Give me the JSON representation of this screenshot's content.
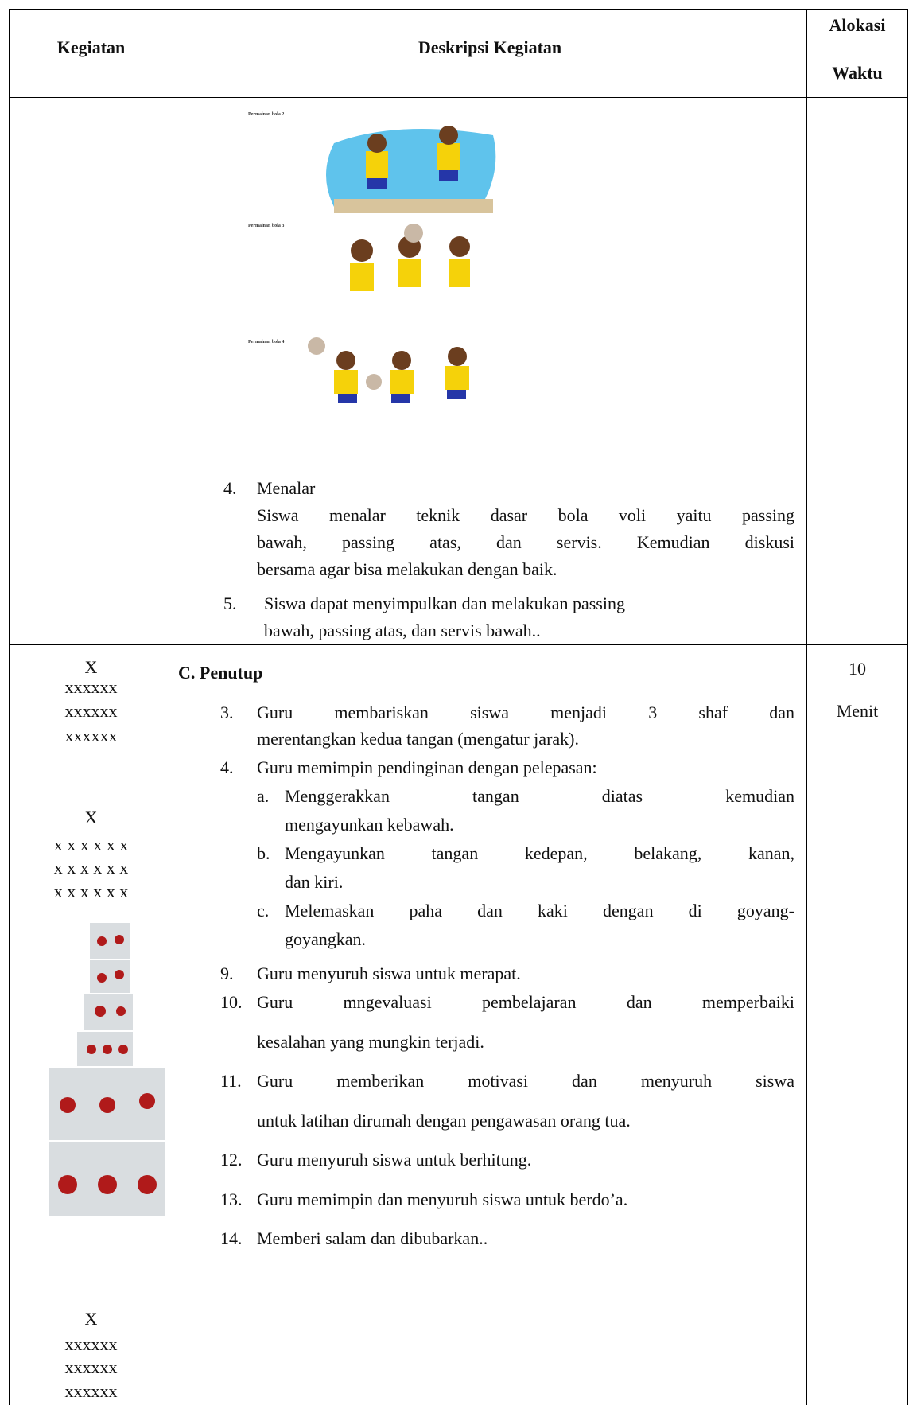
{
  "header": {
    "kegiatan": "Kegiatan",
    "deskripsi": "Deskripsi Kegiatan",
    "alokasi": [
      "Alokasi",
      "Waktu"
    ]
  },
  "rows": [
    {
      "captions": [
        "Permainan bola 2",
        "Permainan bola 3",
        "Permainan bola 4"
      ],
      "items": [
        {
          "number": "4.",
          "title": "Menalar",
          "lines": [
            "Siswa menalar teknik dasar bola voli yaitu passing",
            "bawah, passing atas, dan servis. Kemudian diskusi",
            "bersama agar bisa melakukan dengan baik."
          ]
        },
        {
          "number": "5.",
          "lines": [
            "Siswa dapat menyimpulkan dan melakukan passing",
            "bawah, passing atas, dan servis bawah.."
          ]
        }
      ]
    },
    {
      "kegiatan": [
        "X",
        "xxxxxx",
        "xxxxxx",
        "xxxxxx",
        "X",
        "x x x x x x",
        "x x x x x x",
        "x x x x x x",
        "X",
        "xxxxxx",
        "xxxxxx",
        "xxxxxx"
      ],
      "section": "C. Penutup",
      "items": [
        {
          "number": "3.",
          "lines": [
            "Guru membariskan siswa menjadi 3 shaf dan",
            "merentangkan kedua tangan (mengatur jarak)."
          ]
        },
        {
          "number": "4.",
          "lines": [
            "Guru memimpin pendinginan dengan pelepasan:"
          ],
          "subitems": [
            {
              "letter": "a.",
              "lines": [
                "Menggerakkan tangan diatas kemudian",
                "mengayunkan kebawah."
              ]
            },
            {
              "letter": "b.",
              "lines": [
                "Mengayunkan tangan kedepan, belakang, kanan,",
                "dan kiri."
              ]
            },
            {
              "letter": "c.",
              "lines": [
                "Melemaskan paha dan kaki dengan di goyang-",
                "goyangkan."
              ]
            }
          ]
        },
        {
          "number": "9.",
          "lines": [
            "Guru menyuruh siswa untuk merapat."
          ]
        },
        {
          "number": "10.",
          "lines": [
            "Guru mngevaluasi pembelajaran dan memperbaiki",
            "kesalahan yang mungkin terjadi."
          ]
        },
        {
          "number": "11.",
          "lines": [
            "Guru memberikan motivasi dan menyuruh siswa",
            "untuk latihan dirumah dengan pengawasan orang tua."
          ]
        },
        {
          "number": "12.",
          "lines": [
            "Guru menyuruh siswa untuk berhitung."
          ]
        },
        {
          "number": "13.",
          "lines": [
            "Guru memimpin dan menyuruh siswa untuk berdo’a."
          ]
        },
        {
          "number": "14.",
          "lines": [
            "Memberi salam dan dibubarkan.."
          ]
        }
      ],
      "alokasi": [
        "10",
        "Menit"
      ]
    }
  ]
}
